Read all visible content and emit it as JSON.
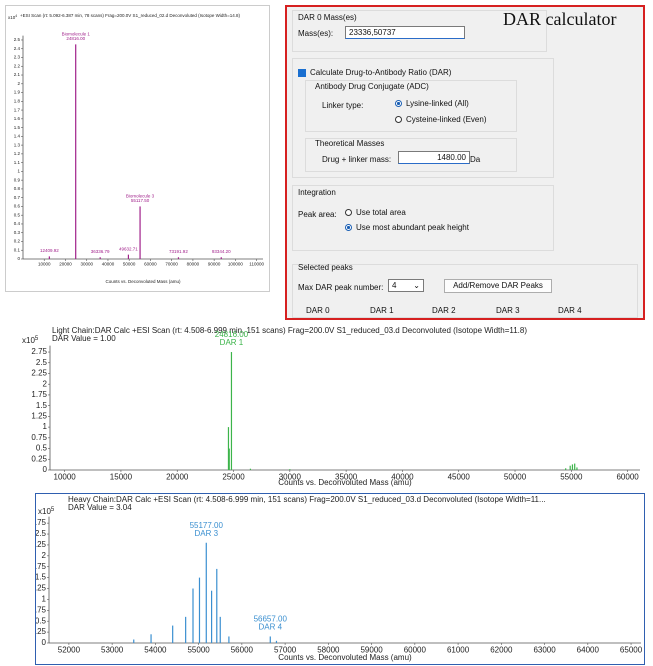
{
  "chart_data": [
    {
      "type": "stem",
      "title": "+ESI Scan (rt: 5.092-6.387 min, 78 scans) Frag=200.0V S1_reduced_02.d  Deconvoluted (Isotope Width=14.8)",
      "y_unit": "x10",
      "y_exp": "4",
      "x_label": "Counts vs. Deconvoluted Mass (amu)",
      "color": "#a0208a",
      "x": [
        12409.92,
        24816.0,
        36336.79,
        49632.71,
        55117.5,
        73191.92,
        93344.2
      ],
      "values": [
        0.03,
        2.45,
        0.02,
        0.05,
        0.6,
        0.02,
        0.02
      ],
      "annotations": [
        {
          "x": 12409.92,
          "y": 0.03,
          "lines": [
            "12409.92"
          ]
        },
        {
          "x": 24816.0,
          "y": 2.45,
          "lines": [
            "Biomolecule 1",
            "24816.00"
          ]
        },
        {
          "x": 36336.79,
          "y": 0.02,
          "lines": [
            "36336.79"
          ]
        },
        {
          "x": 49632.71,
          "y": 0.05,
          "lines": [
            "49632.71"
          ]
        },
        {
          "x": 55117.5,
          "y": 0.6,
          "lines": [
            "Biomolecule 3",
            "55117.50"
          ]
        },
        {
          "x": 73191.92,
          "y": 0.02,
          "lines": [
            "73191.92"
          ]
        },
        {
          "x": 93344.2,
          "y": 0.02,
          "lines": [
            "93344.20"
          ]
        }
      ],
      "xlim": [
        0,
        113000
      ],
      "xticks": [
        10000,
        20000,
        30000,
        40000,
        50000,
        60000,
        70000,
        80000,
        90000,
        100000,
        110000
      ],
      "ylim": [
        0,
        2.55
      ],
      "yticks": [
        0,
        0.1,
        0.2,
        0.3,
        0.4,
        0.5,
        0.6,
        0.7,
        0.8,
        0.9,
        1,
        1.1,
        1.2,
        1.3,
        1.4,
        1.5,
        1.6,
        1.7,
        1.8,
        1.9,
        2,
        2.1,
        2.2,
        2.3,
        2.4,
        2.5
      ]
    },
    {
      "type": "stem",
      "title": "Light Chain:DAR Calc +ESI Scan (rt: 4.508-6.999 min, 151 scans) Frag=200.0V S1_reduced_03.d  Deconvoluted (Isotope Width=11.8)",
      "subtitle": "DAR Value = 1.00",
      "y_unit": "x10",
      "y_exp": "5",
      "x_label": "Counts vs. Deconvoluted Mass (amu)",
      "color": "#3cb44a",
      "x": [
        24550,
        24620,
        24816.0,
        26500,
        30000,
        54500,
        54900,
        55100,
        55300,
        55500
      ],
      "values": [
        1.0,
        0.5,
        2.75,
        0.03,
        0.02,
        0.04,
        0.1,
        0.13,
        0.15,
        0.06
      ],
      "annotations": [
        {
          "x": 24816.0,
          "y": 2.75,
          "lines": [
            "24816.00",
            "DAR 1"
          ]
        }
      ],
      "xlim": [
        8700,
        61100
      ],
      "xticks": [
        10000,
        15000,
        20000,
        25000,
        30000,
        35000,
        40000,
        45000,
        50000,
        55000,
        60000
      ],
      "ylim": [
        0,
        2.9
      ],
      "yticks": [
        0,
        0.25,
        0.5,
        0.75,
        1,
        1.25,
        1.5,
        1.75,
        2,
        2.25,
        2.5,
        2.75
      ]
    },
    {
      "type": "stem",
      "title": "Heavy Chain:DAR Calc +ESI Scan (rt: 4.508-6.999 min, 151 scans) Frag=200.0V S1_reduced_03.d  Deconvoluted (Isotope Width=11...",
      "subtitle": "DAR Value = 3.04",
      "y_unit": "x10",
      "y_exp": "5",
      "x_label": "Counts vs. Deconvoluted Mass (amu)",
      "color": "#3a8fd0",
      "x": [
        53500,
        53900,
        54400,
        54700,
        54870,
        55020,
        55177.0,
        55300,
        55420,
        55500,
        55700,
        56657.0,
        56800
      ],
      "values": [
        0.08,
        0.2,
        0.4,
        0.6,
        1.25,
        1.5,
        2.3,
        1.2,
        1.7,
        0.6,
        0.15,
        0.15,
        0.05
      ],
      "annotations": [
        {
          "x": 55177.0,
          "y": 2.3,
          "lines": [
            "55177.00",
            "DAR 3"
          ]
        },
        {
          "x": 56657.0,
          "y": 0.15,
          "lines": [
            "56657.00",
            "DAR 4"
          ]
        }
      ],
      "xlim": [
        51540,
        65230
      ],
      "xticks": [
        52000,
        53000,
        54000,
        55000,
        56000,
        57000,
        58000,
        59000,
        60000,
        61000,
        62000,
        63000,
        64000,
        65000
      ],
      "ylim": [
        0,
        2.9
      ],
      "yticks": [
        0,
        0.25,
        0.5,
        0.75,
        1,
        1.25,
        1.5,
        1.75,
        2,
        2.25,
        2.5,
        2.75
      ]
    }
  ],
  "dialog": {
    "label": "DAR calculator",
    "dar0_group": "DAR 0 Mass(es)",
    "masses_label": "Mass(es):",
    "masses_value": "23336,50737",
    "calc_checkbox": "Calculate Drug-to-Antibody Ratio (DAR)",
    "adc_group": "Antibody Drug Conjugate (ADC)",
    "linker_label": "Linker type:",
    "linker_options": [
      "Lysine-linked (All)",
      "Cysteine-linked (Even)"
    ],
    "theoretical_group": "Theoretical Masses",
    "drug_label": "Drug + linker mass:",
    "drug_value": "1480.00",
    "drug_unit": "Da",
    "integration_group": "Integration",
    "peak_area_label": "Peak area:",
    "peak_area_options": [
      "Use total area",
      "Use most abundant peak height"
    ],
    "selected_group": "Selected peaks",
    "max_dar_label": "Max DAR peak number:",
    "max_dar_value": "4",
    "button": "Add/Remove DAR Peaks",
    "columns": [
      "DAR 0",
      "DAR 1",
      "DAR 2",
      "DAR 3",
      "DAR 4"
    ]
  }
}
